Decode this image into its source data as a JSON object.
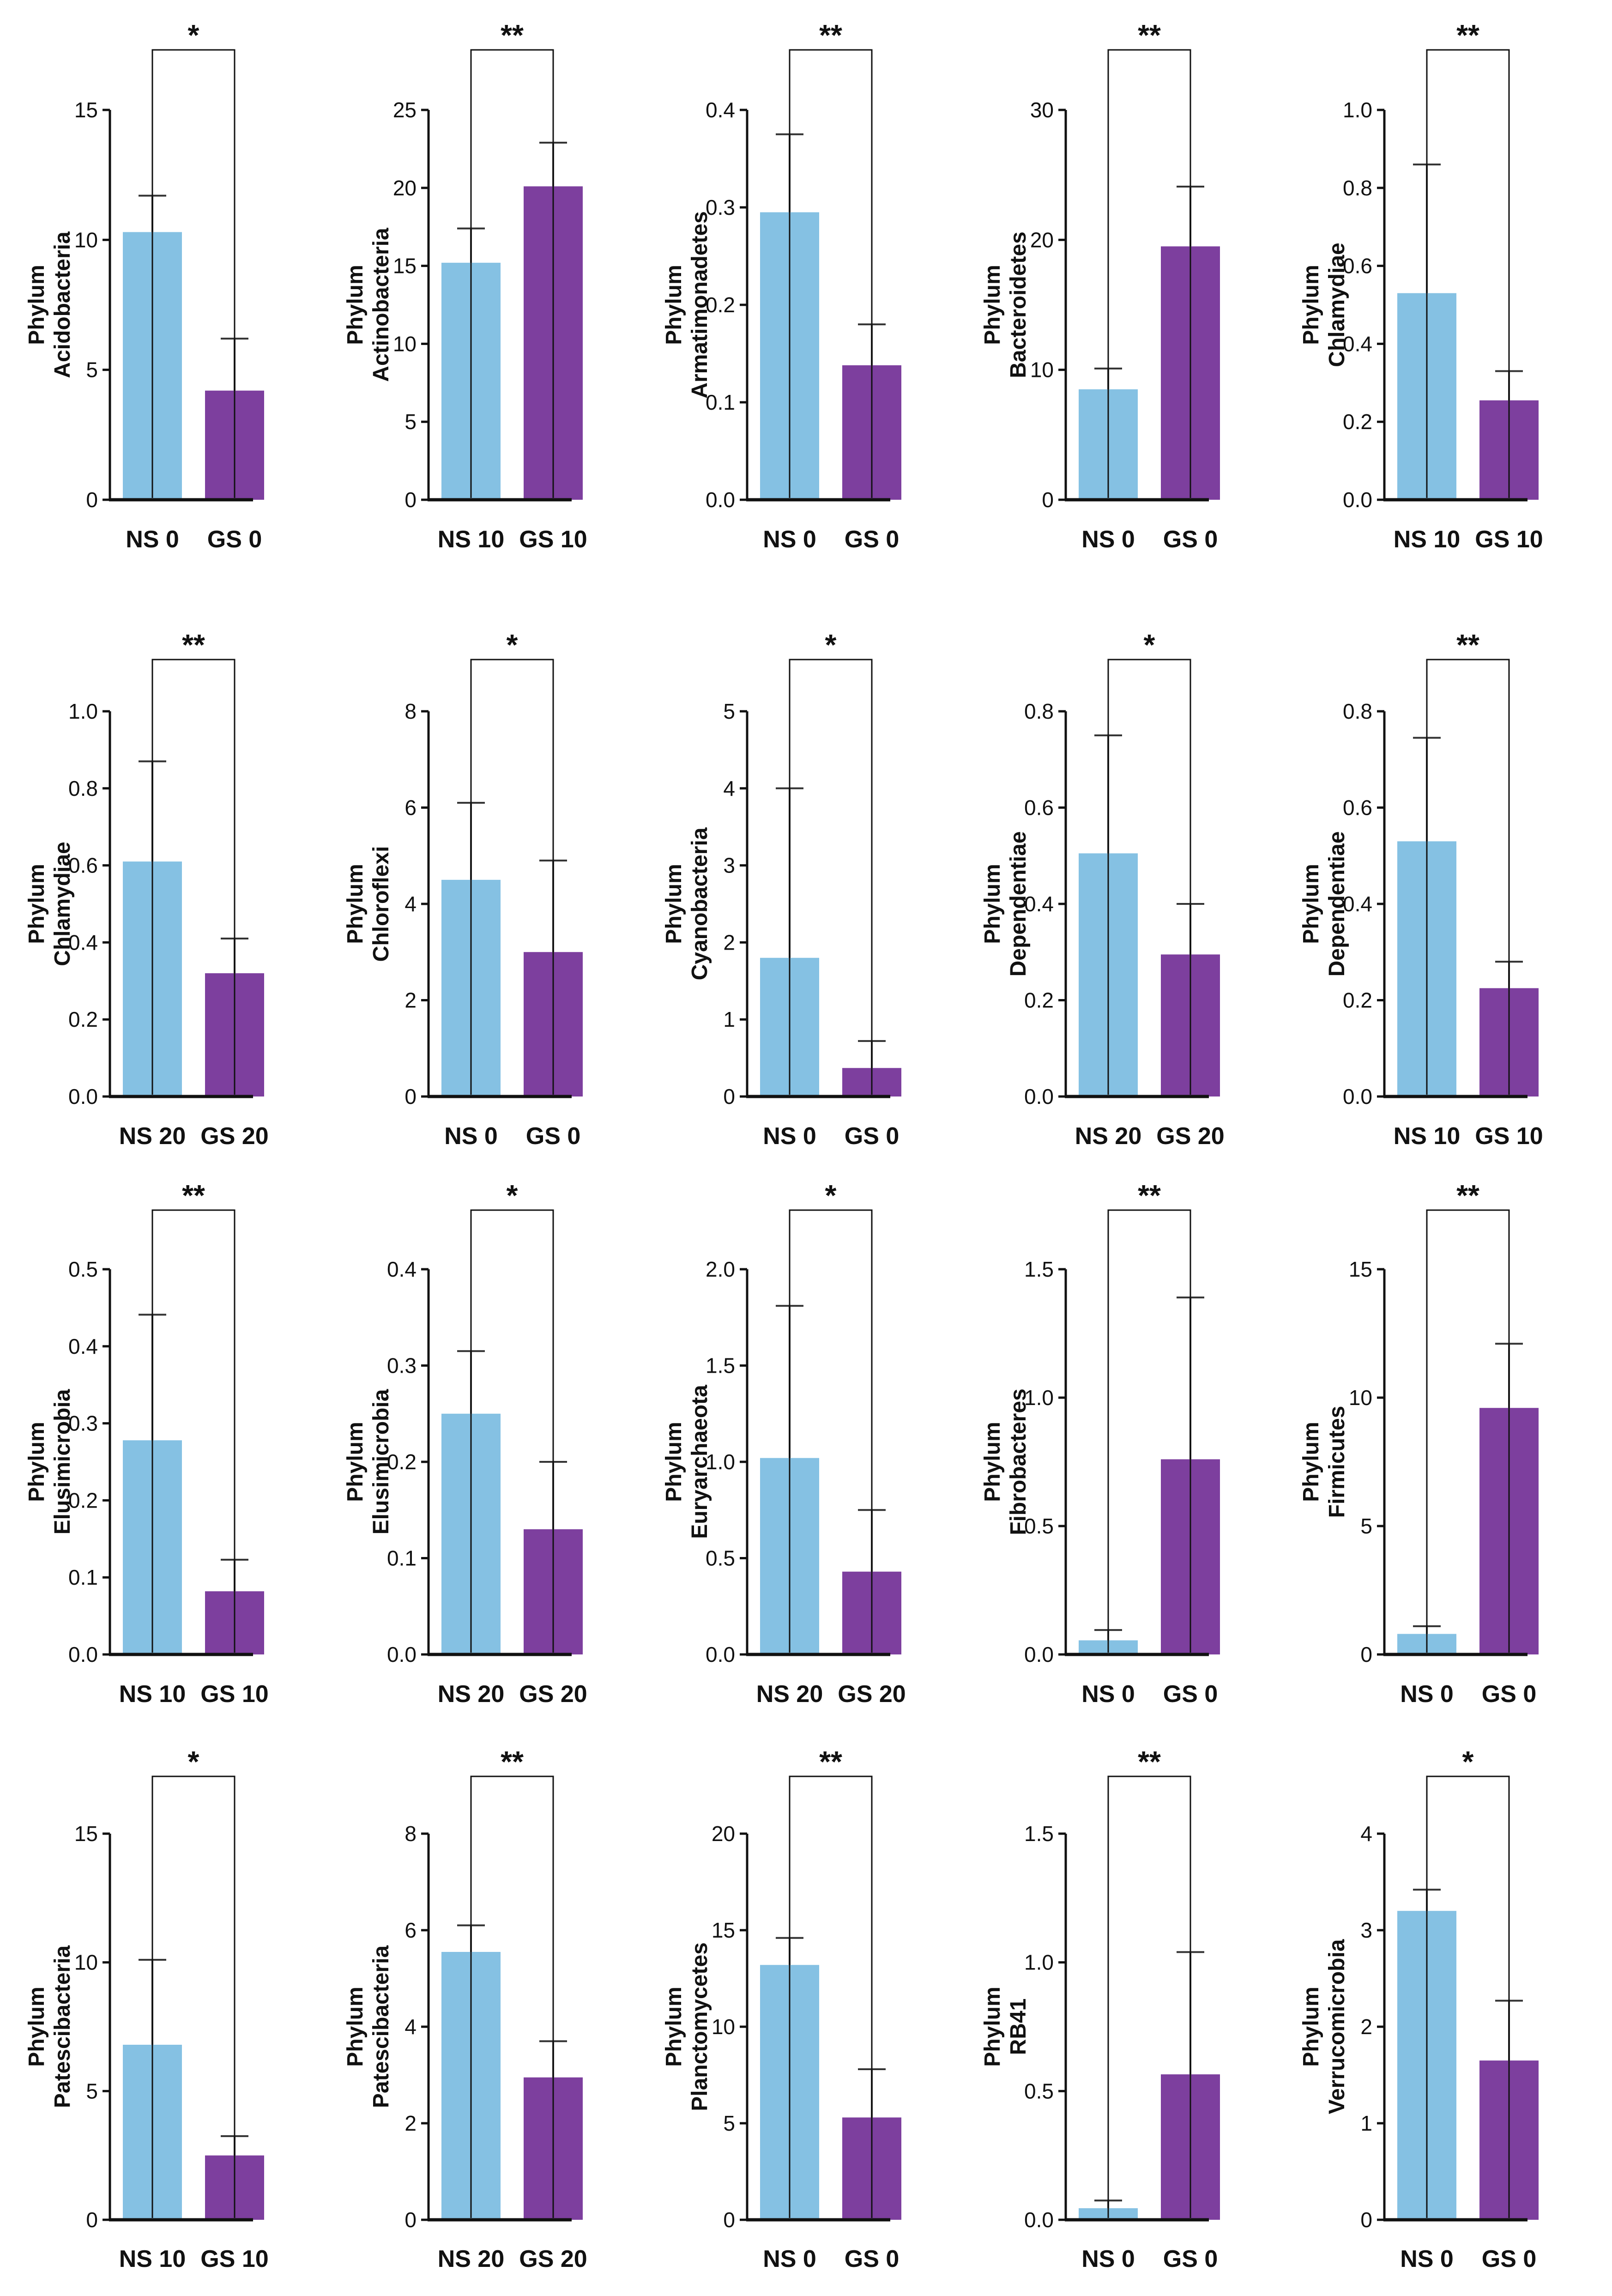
{
  "colors": {
    "ns": "#85c1e3",
    "gs": "#7d3f9e",
    "axis": "#111111",
    "error": "#333333"
  },
  "chart_data": [
    {
      "type": "bar",
      "ylabel": [
        "Phylum",
        "Acidobacteria"
      ],
      "categories": [
        "NS 0",
        "GS 0"
      ],
      "values": [
        10.3,
        4.2
      ],
      "errors": [
        1.4,
        2.0
      ],
      "ylim": [
        0,
        15
      ],
      "yticks": [
        0,
        5,
        10,
        15
      ],
      "ytick_labels": [
        "0",
        "5",
        "10",
        "15"
      ],
      "significance": "*"
    },
    {
      "type": "bar",
      "ylabel": [
        "Phylum",
        "Actinobacteria"
      ],
      "categories": [
        "NS 10",
        "GS 10"
      ],
      "values": [
        15.2,
        20.1
      ],
      "errors": [
        2.2,
        2.8
      ],
      "ylim": [
        0,
        25
      ],
      "yticks": [
        0,
        5,
        10,
        15,
        20,
        25
      ],
      "ytick_labels": [
        "0",
        "5",
        "10",
        "15",
        "20",
        "25"
      ],
      "significance": "**"
    },
    {
      "type": "bar",
      "ylabel": [
        "Phylum",
        "Armatimonadetes"
      ],
      "categories": [
        "NS 0",
        "GS 0"
      ],
      "values": [
        0.295,
        0.138
      ],
      "errors": [
        0.08,
        0.042
      ],
      "ylim": [
        0,
        0.4
      ],
      "yticks": [
        0,
        0.1,
        0.2,
        0.3,
        0.4
      ],
      "ytick_labels": [
        "0.0",
        "0.1",
        "0.2",
        "0.3",
        "0.4"
      ],
      "significance": "**"
    },
    {
      "type": "bar",
      "ylabel": [
        "Phylum",
        "Bacteroidetes"
      ],
      "categories": [
        "NS 0",
        "GS 0"
      ],
      "values": [
        8.5,
        19.5
      ],
      "errors": [
        1.6,
        4.6
      ],
      "ylim": [
        0,
        30
      ],
      "yticks": [
        0,
        10,
        20,
        30
      ],
      "ytick_labels": [
        "0",
        "10",
        "20",
        "30"
      ],
      "significance": "**"
    },
    {
      "type": "bar",
      "ylabel": [
        "Phylum",
        "Chlamydiae"
      ],
      "categories": [
        "NS 10",
        "GS 10"
      ],
      "values": [
        0.53,
        0.255
      ],
      "errors": [
        0.33,
        0.075
      ],
      "ylim": [
        0,
        1.0
      ],
      "yticks": [
        0,
        0.2,
        0.4,
        0.6,
        0.8,
        1.0
      ],
      "ytick_labels": [
        "0.0",
        "0.2",
        "0.4",
        "0.6",
        "0.8",
        "1.0"
      ],
      "significance": "**"
    },
    {
      "type": "bar",
      "ylabel": [
        "Phylum",
        "Chlamydiae"
      ],
      "categories": [
        "NS 20",
        "GS 20"
      ],
      "values": [
        0.61,
        0.32
      ],
      "errors": [
        0.26,
        0.09
      ],
      "ylim": [
        0,
        1.0
      ],
      "yticks": [
        0,
        0.2,
        0.4,
        0.6,
        0.8,
        1.0
      ],
      "ytick_labels": [
        "0.0",
        "0.2",
        "0.4",
        "0.6",
        "0.8",
        "1.0"
      ],
      "significance": "**"
    },
    {
      "type": "bar",
      "ylabel": [
        "Phylum",
        "Chloroflexi"
      ],
      "categories": [
        "NS 0",
        "GS 0"
      ],
      "values": [
        4.5,
        3.0
      ],
      "errors": [
        1.6,
        1.9
      ],
      "ylim": [
        0,
        8
      ],
      "yticks": [
        0,
        2,
        4,
        6,
        8
      ],
      "ytick_labels": [
        "0",
        "2",
        "4",
        "6",
        "8"
      ],
      "significance": "*"
    },
    {
      "type": "bar",
      "ylabel": [
        "Phylum",
        "Cyanobacteria"
      ],
      "categories": [
        "NS 0",
        "GS 0"
      ],
      "values": [
        1.8,
        0.37
      ],
      "errors": [
        2.2,
        0.35
      ],
      "ylim": [
        0,
        5
      ],
      "yticks": [
        0,
        1,
        2,
        3,
        4,
        5
      ],
      "ytick_labels": [
        "0",
        "1",
        "2",
        "3",
        "4",
        "5"
      ],
      "significance": "*"
    },
    {
      "type": "bar",
      "ylabel": [
        "Phylum",
        "Dependentiae"
      ],
      "categories": [
        "NS 20",
        "GS 20"
      ],
      "values": [
        0.505,
        0.295
      ],
      "errors": [
        0.245,
        0.105
      ],
      "ylim": [
        0,
        0.8
      ],
      "yticks": [
        0,
        0.2,
        0.4,
        0.6,
        0.8
      ],
      "ytick_labels": [
        "0.0",
        "0.2",
        "0.4",
        "0.6",
        "0.8"
      ],
      "significance": "*"
    },
    {
      "type": "bar",
      "ylabel": [
        "Phylum",
        "Dependentiae"
      ],
      "categories": [
        "NS 10",
        "GS 10"
      ],
      "values": [
        0.53,
        0.225
      ],
      "errors": [
        0.215,
        0.055
      ],
      "ylim": [
        0,
        0.8
      ],
      "yticks": [
        0,
        0.2,
        0.4,
        0.6,
        0.8
      ],
      "ytick_labels": [
        "0.0",
        "0.2",
        "0.4",
        "0.6",
        "0.8"
      ],
      "significance": "**"
    },
    {
      "type": "bar",
      "ylabel": [
        "Phylum",
        "Elusimicrobia"
      ],
      "categories": [
        "NS 10",
        "GS 10"
      ],
      "values": [
        0.278,
        0.082
      ],
      "errors": [
        0.163,
        0.041
      ],
      "ylim": [
        0,
        0.5
      ],
      "yticks": [
        0,
        0.1,
        0.2,
        0.3,
        0.4,
        0.5
      ],
      "ytick_labels": [
        "0.0",
        "0.1",
        "0.2",
        "0.3",
        "0.4",
        "0.5"
      ],
      "significance": "**"
    },
    {
      "type": "bar",
      "ylabel": [
        "Phylum",
        "Elusimicrobia"
      ],
      "categories": [
        "NS 20",
        "GS 20"
      ],
      "values": [
        0.25,
        0.13
      ],
      "errors": [
        0.065,
        0.07
      ],
      "ylim": [
        0,
        0.4
      ],
      "yticks": [
        0,
        0.1,
        0.2,
        0.3,
        0.4
      ],
      "ytick_labels": [
        "0.0",
        "0.1",
        "0.2",
        "0.3",
        "0.4"
      ],
      "significance": "*"
    },
    {
      "type": "bar",
      "ylabel": [
        "Phylum",
        "Euryarchaeota"
      ],
      "categories": [
        "NS 20",
        "GS 20"
      ],
      "values": [
        1.02,
        0.43
      ],
      "errors": [
        0.79,
        0.32
      ],
      "ylim": [
        0,
        2.0
      ],
      "yticks": [
        0,
        0.5,
        1.0,
        1.5,
        2.0
      ],
      "ytick_labels": [
        "0.0",
        "0.5",
        "1.0",
        "1.5",
        "2.0"
      ],
      "significance": "*"
    },
    {
      "type": "bar",
      "ylabel": [
        "Phylum",
        "Fibrobacteres"
      ],
      "categories": [
        "NS 0",
        "GS 0"
      ],
      "values": [
        0.055,
        0.76
      ],
      "errors": [
        0.04,
        0.63
      ],
      "ylim": [
        0,
        1.5
      ],
      "yticks": [
        0,
        0.5,
        1.0,
        1.5
      ],
      "ytick_labels": [
        "0.0",
        "0.5",
        "1.0",
        "1.5"
      ],
      "significance": "**"
    },
    {
      "type": "bar",
      "ylabel": [
        "Phylum",
        "Firmicutes"
      ],
      "categories": [
        "NS 0",
        "GS 0"
      ],
      "values": [
        0.8,
        9.6
      ],
      "errors": [
        0.3,
        2.5
      ],
      "ylim": [
        0,
        15
      ],
      "yticks": [
        0,
        5,
        10,
        15
      ],
      "ytick_labels": [
        "0",
        "5",
        "10",
        "15"
      ],
      "significance": "**"
    },
    {
      "type": "bar",
      "ylabel": [
        "Phylum",
        "Patescibacteria"
      ],
      "categories": [
        "NS 10",
        "GS 10"
      ],
      "values": [
        6.8,
        2.5
      ],
      "errors": [
        3.3,
        0.75
      ],
      "ylim": [
        0,
        15
      ],
      "yticks": [
        0,
        5,
        10,
        15
      ],
      "ytick_labels": [
        "0",
        "5",
        "10",
        "15"
      ],
      "significance": "*"
    },
    {
      "type": "bar",
      "ylabel": [
        "Phylum",
        "Patescibacteria"
      ],
      "categories": [
        "NS 20",
        "GS 20"
      ],
      "values": [
        5.55,
        2.95
      ],
      "errors": [
        0.55,
        0.75
      ],
      "ylim": [
        0,
        8
      ],
      "yticks": [
        0,
        2,
        4,
        6,
        8
      ],
      "ytick_labels": [
        "0",
        "2",
        "4",
        "6",
        "8"
      ],
      "significance": "**"
    },
    {
      "type": "bar",
      "ylabel": [
        "Phylum",
        "Planctomycetes"
      ],
      "categories": [
        "NS 0",
        "GS 0"
      ],
      "values": [
        13.2,
        5.3
      ],
      "errors": [
        1.4,
        2.5
      ],
      "ylim": [
        0,
        20
      ],
      "yticks": [
        0,
        5,
        10,
        15,
        20
      ],
      "ytick_labels": [
        "0",
        "5",
        "10",
        "15",
        "20"
      ],
      "significance": "**"
    },
    {
      "type": "bar",
      "ylabel": [
        "Phylum",
        "RB41"
      ],
      "categories": [
        "NS 0",
        "GS 0"
      ],
      "values": [
        0.045,
        0.565
      ],
      "errors": [
        0.03,
        0.475
      ],
      "ylim": [
        0,
        1.5
      ],
      "yticks": [
        0,
        0.5,
        1.0,
        1.5
      ],
      "ytick_labels": [
        "0.0",
        "0.5",
        "1.0",
        "1.5"
      ],
      "significance": "**"
    },
    {
      "type": "bar",
      "ylabel": [
        "Phylum",
        "Verrucomicrobia"
      ],
      "categories": [
        "NS 0",
        "GS 0"
      ],
      "values": [
        3.2,
        1.65
      ],
      "errors": [
        0.22,
        0.62
      ],
      "ylim": [
        0,
        4
      ],
      "yticks": [
        0,
        1,
        2,
        3,
        4
      ],
      "ytick_labels": [
        "0",
        "1",
        "2",
        "3",
        "4"
      ],
      "significance": "*"
    }
  ]
}
